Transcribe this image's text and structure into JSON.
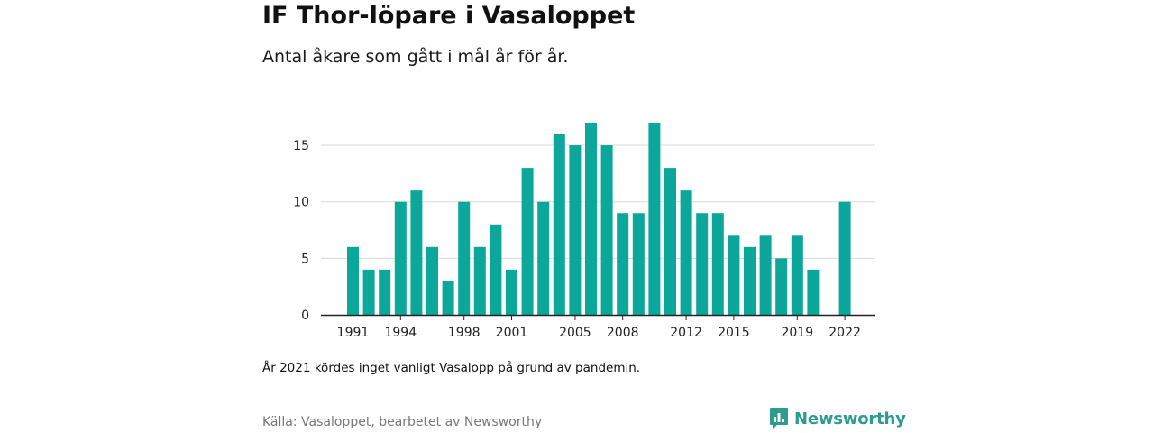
{
  "header": {
    "title": "IF Thor-löpare i Vasaloppet",
    "subtitle": "Antal åkare som gått i mål år för år."
  },
  "footer": {
    "note": "År 2021 kördes inget vanligt Vasalopp på grund av pandemin.",
    "source": "Källa: Vasaloppet, bearbetet av Newsworthy",
    "brand": "Newsworthy"
  },
  "colors": {
    "bar": "#0aa79a",
    "grid": "#d9d9d9",
    "axis": "#222222",
    "brand": "#2a9d8f"
  },
  "icons": {
    "brand_logo": "bar-chart-speech-bubble-icon"
  },
  "chart_data": {
    "type": "bar",
    "title": "",
    "xlabel": "",
    "ylabel": "",
    "categories": [
      "1991",
      "1992",
      "1993",
      "1994",
      "1995",
      "1996",
      "1997",
      "1998",
      "1999",
      "2000",
      "2001",
      "2002",
      "2003",
      "2004",
      "2005",
      "2006",
      "2007",
      "2008",
      "2009",
      "2010",
      "2011",
      "2012",
      "2013",
      "2014",
      "2015",
      "2016",
      "2017",
      "2018",
      "2019",
      "2020",
      "2021",
      "2022"
    ],
    "values": [
      6,
      4,
      4,
      10,
      11,
      6,
      3,
      10,
      6,
      8,
      4,
      13,
      10,
      16,
      15,
      17,
      15,
      9,
      9,
      17,
      13,
      11,
      9,
      9,
      7,
      6,
      7,
      5,
      7,
      4,
      null,
      10
    ],
    "x_tick_labels": [
      "1991",
      "1994",
      "1998",
      "2001",
      "2005",
      "2008",
      "2012",
      "2015",
      "2019",
      "2022"
    ],
    "y_ticks": [
      0,
      5,
      10,
      15
    ],
    "ylim": [
      0,
      18
    ],
    "grid": true,
    "legend": "none"
  }
}
